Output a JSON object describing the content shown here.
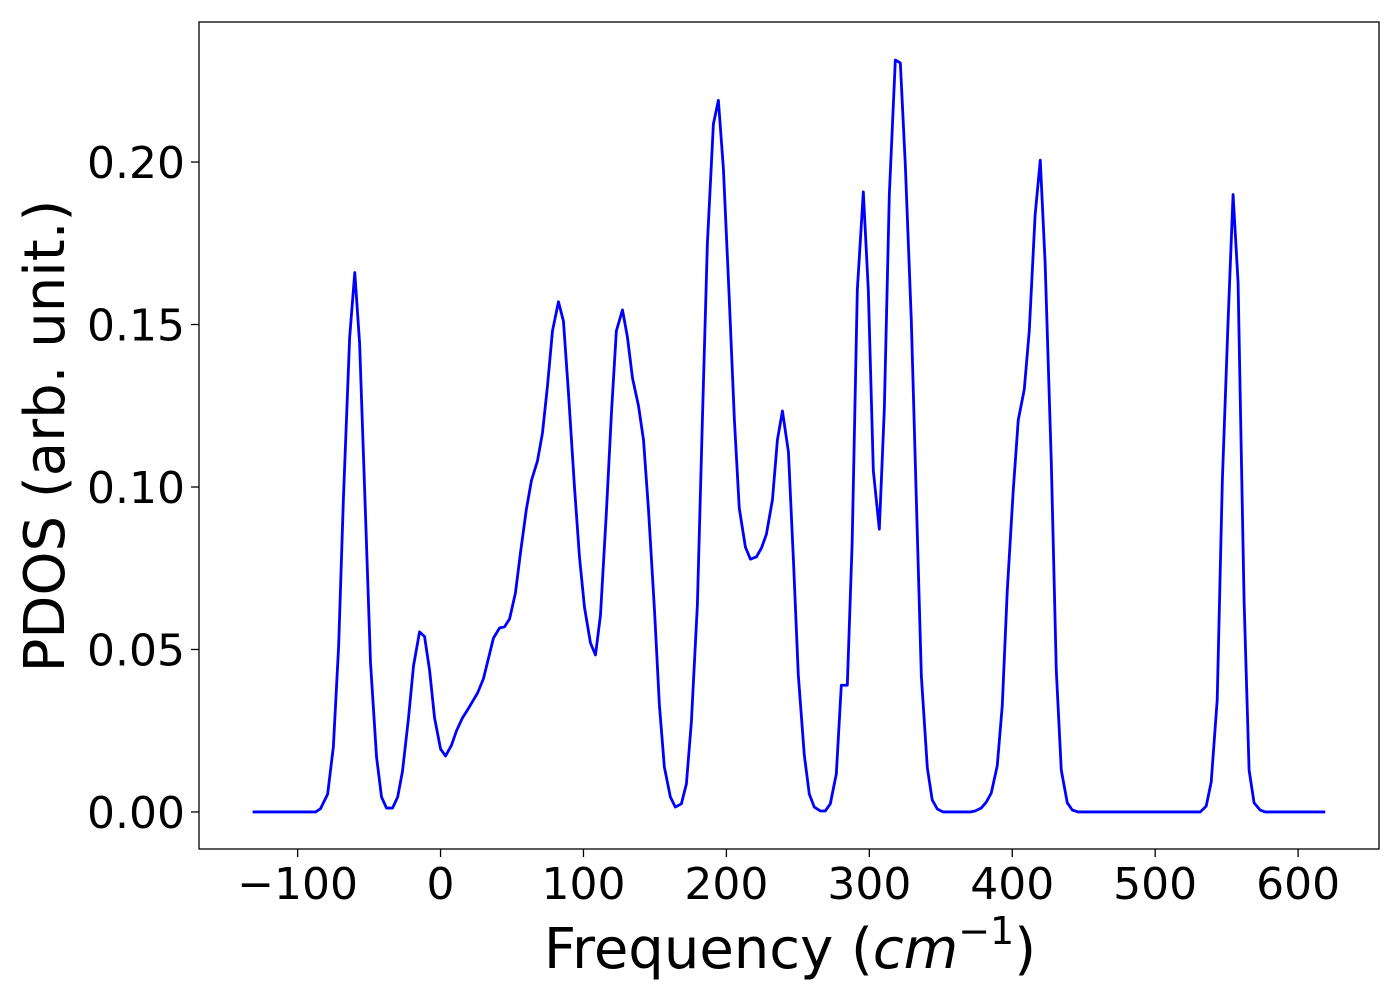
{
  "chart_data": {
    "type": "line",
    "x_label_parts": [
      "Frequency (",
      "cm",
      "−1",
      ")"
    ],
    "y_label": "PDOS (arb. unit.)",
    "color": "#0000ff",
    "x": [
      -131.5,
      -87.4,
      -84,
      -79,
      -75,
      -71.3,
      -68,
      -63.6,
      -60,
      -56.6,
      -52.4,
      -49,
      -44.8,
      -41.3,
      -37.8,
      -33.6,
      -30,
      -26.6,
      -22.4,
      -18.9,
      -14.7,
      -11.2,
      -7.7,
      -4.2,
      0,
      3.5,
      7.7,
      11.2,
      15.4,
      18.9,
      22.4,
      25.9,
      30,
      33.6,
      37,
      41.3,
      44.8,
      48.3,
      52.4,
      56,
      60,
      63.6,
      67.8,
      71.3,
      74.8,
      78.3,
      82.5,
      86,
      89.5,
      93.7,
      97.2,
      100.7,
      104.9,
      108.4,
      111.9,
      116,
      119.6,
      123,
      127.3,
      130.8,
      134.3,
      138.5,
      142,
      145.5,
      149.7,
      153.1,
      156.6,
      160.8,
      164.3,
      168.5,
      172,
      175.5,
      179.7,
      183.2,
      186.7,
      190.9,
      194.4,
      197.9,
      202,
      205.6,
      209,
      213.3,
      216.8,
      221,
      224.5,
      228,
      232.2,
      235.7,
      239.2,
      243.4,
      246.9,
      250.3,
      254.5,
      258,
      261.5,
      265.7,
      269.2,
      272.7,
      276.9,
      280.4,
      284.6,
      288,
      291.6,
      295.8,
      299.3,
      302.8,
      307,
      310.5,
      314,
      318.2,
      321.7,
      325.2,
      329.4,
      332.9,
      336.4,
      340.6,
      344,
      347.6,
      351.7,
      370.6,
      374,
      378.3,
      381.8,
      385.3,
      389.5,
      393,
      396.5,
      400.7,
      404.2,
      408.4,
      411.9,
      416,
      419.6,
      423,
      427.3,
      430.8,
      434.3,
      438.5,
      442,
      446,
      531.5,
      535.7,
      539.2,
      543.4,
      547,
      551,
      554.5,
      558,
      562.2,
      565.7,
      569.2,
      573.4,
      577,
      619
    ],
    "values": [
      0,
      0,
      0.001,
      0.0055,
      0.02,
      0.051,
      0.096,
      0.146,
      0.166,
      0.144,
      0.09,
      0.046,
      0.017,
      0.0046,
      0.0012,
      0.0012,
      0.0046,
      0.0126,
      0.029,
      0.045,
      0.0554,
      0.054,
      0.0437,
      0.029,
      0.0194,
      0.0172,
      0.0206,
      0.025,
      0.029,
      0.0314,
      0.034,
      0.0366,
      0.041,
      0.0474,
      0.0535,
      0.0566,
      0.057,
      0.0594,
      0.0674,
      0.08,
      0.093,
      0.102,
      0.108,
      0.1166,
      0.131,
      0.148,
      0.157,
      0.151,
      0.129,
      0.1,
      0.0785,
      0.063,
      0.052,
      0.0483,
      0.0606,
      0.092,
      0.123,
      0.148,
      0.1545,
      0.146,
      0.1335,
      0.125,
      0.1145,
      0.093,
      0.062,
      0.033,
      0.0138,
      0.0046,
      0.0015,
      0.0025,
      0.0086,
      0.0277,
      0.0637,
      0.1206,
      0.175,
      0.2117,
      0.219,
      0.198,
      0.158,
      0.1206,
      0.0935,
      0.0815,
      0.0778,
      0.0785,
      0.0812,
      0.0855,
      0.096,
      0.1145,
      0.1234,
      0.1108,
      0.0775,
      0.0422,
      0.0175,
      0.0055,
      0.0015,
      0.0003,
      0.0003,
      0.0025,
      0.0117,
      0.039,
      0.039,
      0.083,
      0.1606,
      0.1908,
      0.1606,
      0.105,
      0.087,
      0.124,
      0.19,
      0.2314,
      0.2305,
      0.199,
      0.151,
      0.096,
      0.0418,
      0.0135,
      0.0037,
      0.0009,
      0,
      0,
      0.0003,
      0.0012,
      0.003,
      0.0058,
      0.0142,
      0.0326,
      0.068,
      0.099,
      0.1206,
      0.13,
      0.148,
      0.1837,
      0.2006,
      0.169,
      0.108,
      0.0437,
      0.0129,
      0.0028,
      0.0006,
      0,
      0,
      0.0018,
      0.0092,
      0.0345,
      0.102,
      0.151,
      0.19,
      0.163,
      0.065,
      0.0129,
      0.0028,
      0.0006,
      0,
      0
    ],
    "xlim": [
      -169,
      656.6
    ],
    "ylim": [
      -0.0114,
      0.2431
    ],
    "xticks": [
      {
        "value": -100,
        "label": "−100"
      },
      0,
      100,
      200,
      300,
      400,
      500,
      600
    ],
    "yticks": [
      {
        "value": 0,
        "label": "0.00"
      },
      {
        "value": 0.05,
        "label": "0.05"
      },
      {
        "value": 0.1,
        "label": "0.10"
      },
      {
        "value": 0.15,
        "label": "0.15"
      },
      {
        "value": 0.2,
        "label": "0.20"
      }
    ],
    "grid": false
  }
}
